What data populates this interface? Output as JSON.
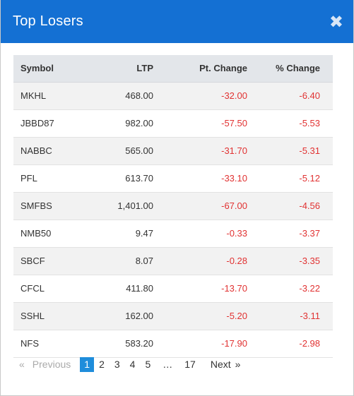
{
  "modal": {
    "title": "Top Losers",
    "close_glyph": "✖"
  },
  "table": {
    "headers": [
      "Symbol",
      "LTP",
      "Pt. Change",
      "% Change"
    ],
    "rows": [
      {
        "symbol": "MKHL",
        "ltp": "468.00",
        "pt_change": "-32.00",
        "pct_change": "-6.40"
      },
      {
        "symbol": "JBBD87",
        "ltp": "982.00",
        "pt_change": "-57.50",
        "pct_change": "-5.53"
      },
      {
        "symbol": "NABBC",
        "ltp": "565.00",
        "pt_change": "-31.70",
        "pct_change": "-5.31"
      },
      {
        "symbol": "PFL",
        "ltp": "613.70",
        "pt_change": "-33.10",
        "pct_change": "-5.12"
      },
      {
        "symbol": "SMFBS",
        "ltp": "1,401.00",
        "pt_change": "-67.00",
        "pct_change": "-4.56"
      },
      {
        "symbol": "NMB50",
        "ltp": "9.47",
        "pt_change": "-0.33",
        "pct_change": "-3.37"
      },
      {
        "symbol": "SBCF",
        "ltp": "8.07",
        "pt_change": "-0.28",
        "pct_change": "-3.35"
      },
      {
        "symbol": "CFCL",
        "ltp": "411.80",
        "pt_change": "-13.70",
        "pct_change": "-3.22"
      },
      {
        "symbol": "SSHL",
        "ltp": "162.00",
        "pt_change": "-5.20",
        "pct_change": "-3.11"
      },
      {
        "symbol": "NFS",
        "ltp": "583.20",
        "pt_change": "-17.90",
        "pct_change": "-2.98"
      }
    ]
  },
  "pagination": {
    "prev_arrow": "«",
    "prev_label": "Previous",
    "pages": [
      "1",
      "2",
      "3",
      "4",
      "5"
    ],
    "active_page": "1",
    "ellipsis": "…",
    "last_page": "17",
    "next_label": "Next",
    "next_arrow": "»"
  },
  "colors": {
    "header_bg": "#1470d3",
    "negative": "#e13232",
    "active_page_bg": "#1f8ddb"
  }
}
